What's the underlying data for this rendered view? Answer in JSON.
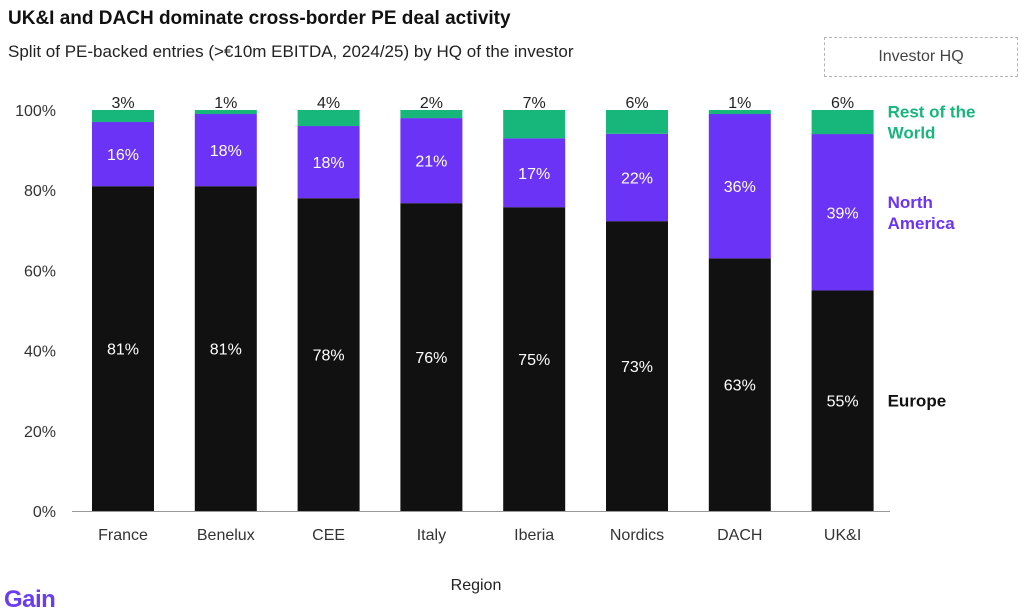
{
  "chart_data": {
    "type": "bar",
    "stacked": true,
    "title": "UK&I and DACH dominate cross-border PE deal activity",
    "subtitle": "Split of PE-backed entries (>€10m EBITDA, 2024/25) by HQ of the investor",
    "xlabel": "Region",
    "ylabel": "",
    "ylim": [
      0,
      100
    ],
    "yticks": [
      "0%",
      "20%",
      "40%",
      "60%",
      "80%",
      "100%"
    ],
    "ytick_values": [
      0,
      20,
      40,
      60,
      80,
      100
    ],
    "legend_title": "Investor HQ",
    "categories": [
      "France",
      "Benelux",
      "CEE",
      "Italy",
      "Iberia",
      "Nordics",
      "DACH",
      "UK&I"
    ],
    "series": [
      {
        "name": "Europe",
        "color": "#111111",
        "values": [
          81,
          81,
          78,
          76,
          75,
          73,
          63,
          55
        ],
        "labels": [
          "81%",
          "81%",
          "78%",
          "76%",
          "75%",
          "73%",
          "63%",
          "55%"
        ]
      },
      {
        "name": "North America",
        "color": "#6a33f5",
        "values": [
          16,
          18,
          18,
          21,
          17,
          22,
          36,
          39
        ],
        "labels": [
          "16%",
          "18%",
          "18%",
          "21%",
          "17%",
          "22%",
          "36%",
          "39%"
        ]
      },
      {
        "name": "Rest of the World",
        "color": "#17b67a",
        "values": [
          3,
          1,
          4,
          2,
          7,
          6,
          1,
          6
        ],
        "labels": [
          "3%",
          "1%",
          "4%",
          "2%",
          "7%",
          "6%",
          "1%",
          "6%"
        ]
      }
    ],
    "series_label_lines": {
      "Europe": [
        "Europe"
      ],
      "North America": [
        "North",
        "America"
      ],
      "Rest of the World": [
        "Rest of the",
        "World"
      ]
    },
    "grid": false,
    "legend_placement": "right"
  },
  "brand": {
    "logo_text": "Gain",
    "accent": "#6a3df0"
  }
}
